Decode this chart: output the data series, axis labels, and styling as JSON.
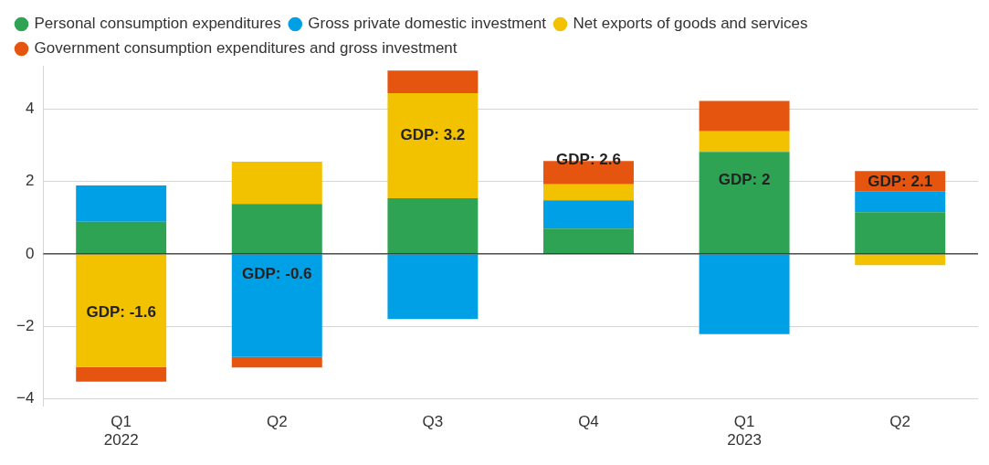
{
  "chart_data": {
    "type": "bar",
    "stacked": true,
    "categories": [
      "Q1\n2022",
      "Q2",
      "Q3",
      "Q4",
      "Q1\n2023",
      "Q2"
    ],
    "series": [
      {
        "name": "Personal consumption expenditures",
        "color": "#2ea353",
        "values": [
          0.89,
          1.38,
          1.54,
          0.7,
          2.82,
          1.15
        ]
      },
      {
        "name": "Gross private domestic investment",
        "color": "#00a0e6",
        "values": [
          1.0,
          -2.85,
          -1.8,
          0.78,
          -2.22,
          0.57
        ]
      },
      {
        "name": "Net exports of goods and services",
        "color": "#f2c200",
        "values": [
          -3.13,
          1.17,
          2.9,
          0.44,
          0.57,
          -0.31
        ]
      },
      {
        "name": "Government consumption expenditures and gross investment",
        "color": "#e6550f",
        "values": [
          -0.4,
          -0.29,
          0.63,
          0.65,
          0.84,
          0.57
        ]
      }
    ],
    "ylim": [
      -4.2,
      5.2
    ],
    "yticks": [
      {
        "value": -4,
        "label": "−4"
      },
      {
        "value": -2,
        "label": "−2"
      },
      0,
      2,
      4
    ],
    "grid": "y",
    "legend": "top left",
    "ref_lines": [
      {
        "axis": "y",
        "value": 0,
        "color": "#000000"
      }
    ],
    "annotations": [
      "GDP: -1.6",
      "GDP: -0.6",
      "GDP: 3.2",
      "GDP: 2.6",
      "GDP: 2",
      "GDP: 2.1"
    ]
  }
}
